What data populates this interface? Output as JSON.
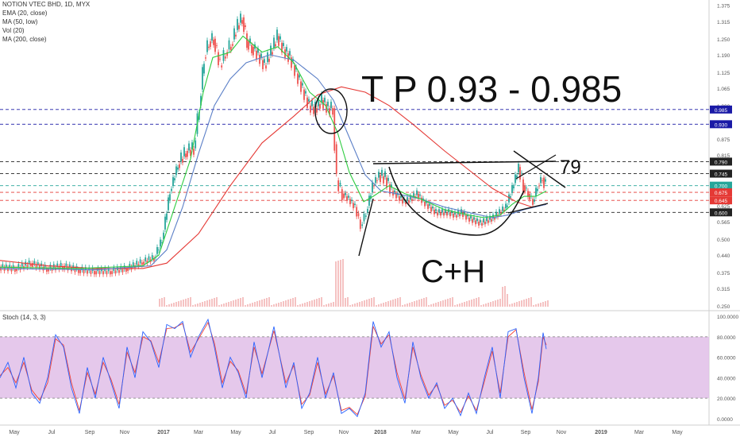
{
  "legend": {
    "title": "NOTION VTEC BHD, 1D, MYX",
    "ema": "EMA (20, close)",
    "ma50": "MA (50, low)",
    "vol": "Vol (20)",
    "ma200": "MA (200, close)"
  },
  "stoch_label": "Stoch (14, 3, 3)",
  "annotations": {
    "tp": "T P  0.93 - 0.985",
    "cup_handle": "C+H",
    "level_note": "79"
  },
  "colors": {
    "candle_up": "#26a69a",
    "candle_down": "#ef5350",
    "ema": "#2ecc40",
    "ma50": "#5b7fc7",
    "ma200": "#e53935",
    "stoch_k": "#2962ff",
    "stoch_d": "#f44336",
    "stoch_band": "#e1bee7",
    "level_blue": "#1a1aa6",
    "level_black": "#222222",
    "level_red": "#e53935",
    "level_teal": "#26a69a"
  },
  "chart_data": [
    {
      "type": "candlestick",
      "title": "NOTION VTEC BHD, 1D, MYX",
      "x_ticks": [
        "May",
        "Jul",
        "Sep",
        "Nov",
        "2017",
        "Mar",
        "May",
        "Jul",
        "Sep",
        "Nov",
        "2018",
        "Mar",
        "May",
        "Jul",
        "Sep",
        "Nov",
        "2019",
        "Mar",
        "May"
      ],
      "y_ticks": [
        0.25,
        0.315,
        0.375,
        0.44,
        0.5,
        0.565,
        0.625,
        0.69,
        0.75,
        0.815,
        0.875,
        0.94,
        1.0,
        1.065,
        1.125,
        1.19,
        1.25,
        1.315,
        1.375
      ],
      "y_tick_labels": [
        "0.250",
        "0.315",
        "0.375",
        "0.440",
        "0.500",
        "0.565",
        "0.625",
        "0.690",
        "0.750",
        "0.815",
        "0.875",
        "0.940",
        "1.000",
        "1.065",
        "1.125",
        "1.190",
        "1.250",
        "1.315",
        "1.375"
      ],
      "ylim": [
        0.235,
        1.395
      ],
      "price_levels": [
        {
          "value": 0.985,
          "label": "0.985",
          "color": "#1a1aa6"
        },
        {
          "value": 0.93,
          "label": "0.930",
          "color": "#1a1aa6"
        },
        {
          "value": 0.79,
          "label": "0.790",
          "color": "#222222"
        },
        {
          "value": 0.745,
          "label": "0.745",
          "color": "#222222"
        },
        {
          "value": 0.7,
          "label": "0.700",
          "color": "#26a69a"
        },
        {
          "value": 0.675,
          "label": "0.675",
          "color": "#e53935"
        },
        {
          "value": 0.645,
          "label": "0.645",
          "color": "#e53935"
        },
        {
          "value": 0.6,
          "label": "0.600",
          "color": "#222222"
        }
      ],
      "close_series": [
        [
          0,
          0.395
        ],
        [
          20,
          0.39
        ],
        [
          40,
          0.41
        ],
        [
          60,
          0.39
        ],
        [
          80,
          0.4
        ],
        [
          100,
          0.385
        ],
        [
          120,
          0.38
        ],
        [
          140,
          0.38
        ],
        [
          160,
          0.39
        ],
        [
          180,
          0.415
        ],
        [
          195,
          0.43
        ],
        [
          205,
          0.5
        ],
        [
          215,
          0.68
        ],
        [
          225,
          0.78
        ],
        [
          235,
          0.83
        ],
        [
          245,
          0.84
        ],
        [
          252,
          1.0
        ],
        [
          258,
          1.18
        ],
        [
          264,
          1.24
        ],
        [
          270,
          1.25
        ],
        [
          278,
          1.15
        ],
        [
          285,
          1.2
        ],
        [
          292,
          1.23
        ],
        [
          300,
          1.3
        ],
        [
          306,
          1.33
        ],
        [
          312,
          1.24
        ],
        [
          318,
          1.22
        ],
        [
          326,
          1.19
        ],
        [
          334,
          1.15
        ],
        [
          342,
          1.2
        ],
        [
          350,
          1.26
        ],
        [
          358,
          1.21
        ],
        [
          366,
          1.18
        ],
        [
          374,
          1.12
        ],
        [
          382,
          1.06
        ],
        [
          390,
          1.0
        ],
        [
          398,
          0.99
        ],
        [
          406,
          1.02
        ],
        [
          414,
          0.99
        ],
        [
          420,
          0.99
        ],
        [
          425,
          0.72
        ],
        [
          432,
          0.67
        ],
        [
          440,
          0.65
        ],
        [
          448,
          0.62
        ],
        [
          455,
          0.55
        ],
        [
          462,
          0.6
        ],
        [
          470,
          0.7
        ],
        [
          478,
          0.74
        ],
        [
          486,
          0.73
        ],
        [
          494,
          0.68
        ],
        [
          502,
          0.66
        ],
        [
          510,
          0.64
        ],
        [
          518,
          0.65
        ],
        [
          526,
          0.67
        ],
        [
          534,
          0.64
        ],
        [
          542,
          0.62
        ],
        [
          550,
          0.6
        ],
        [
          558,
          0.6
        ],
        [
          566,
          0.6
        ],
        [
          574,
          0.59
        ],
        [
          582,
          0.6
        ],
        [
          590,
          0.58
        ],
        [
          598,
          0.57
        ],
        [
          606,
          0.56
        ],
        [
          614,
          0.57
        ],
        [
          622,
          0.58
        ],
        [
          630,
          0.6
        ],
        [
          638,
          0.62
        ],
        [
          646,
          0.69
        ],
        [
          654,
          0.77
        ],
        [
          660,
          0.7
        ],
        [
          666,
          0.67
        ],
        [
          672,
          0.64
        ],
        [
          678,
          0.7
        ],
        [
          684,
          0.73
        ],
        [
          688,
          0.7
        ]
      ],
      "ema20_series": [
        [
          0,
          0.395
        ],
        [
          100,
          0.39
        ],
        [
          180,
          0.4
        ],
        [
          200,
          0.44
        ],
        [
          220,
          0.62
        ],
        [
          240,
          0.8
        ],
        [
          256,
          1.05
        ],
        [
          268,
          1.18
        ],
        [
          290,
          1.2
        ],
        [
          306,
          1.26
        ],
        [
          330,
          1.2
        ],
        [
          350,
          1.22
        ],
        [
          370,
          1.16
        ],
        [
          390,
          1.05
        ],
        [
          410,
          1.0
        ],
        [
          425,
          0.9
        ],
        [
          440,
          0.75
        ],
        [
          458,
          0.64
        ],
        [
          470,
          0.66
        ],
        [
          490,
          0.7
        ],
        [
          510,
          0.67
        ],
        [
          530,
          0.65
        ],
        [
          560,
          0.61
        ],
        [
          590,
          0.59
        ],
        [
          610,
          0.58
        ],
        [
          630,
          0.59
        ],
        [
          645,
          0.63
        ],
        [
          660,
          0.66
        ],
        [
          675,
          0.66
        ],
        [
          688,
          0.68
        ]
      ],
      "ma50_series": [
        [
          0,
          0.39
        ],
        [
          120,
          0.385
        ],
        [
          190,
          0.4
        ],
        [
          210,
          0.46
        ],
        [
          230,
          0.62
        ],
        [
          250,
          0.82
        ],
        [
          270,
          1.0
        ],
        [
          290,
          1.1
        ],
        [
          310,
          1.16
        ],
        [
          340,
          1.19
        ],
        [
          370,
          1.17
        ],
        [
          400,
          1.1
        ],
        [
          420,
          1.02
        ],
        [
          440,
          0.88
        ],
        [
          460,
          0.74
        ],
        [
          480,
          0.68
        ],
        [
          500,
          0.67
        ],
        [
          530,
          0.65
        ],
        [
          560,
          0.62
        ],
        [
          590,
          0.6
        ],
        [
          620,
          0.58
        ],
        [
          640,
          0.59
        ],
        [
          660,
          0.61
        ],
        [
          688,
          0.63
        ]
      ],
      "ma200_series": [
        [
          0,
          0.42
        ],
        [
          60,
          0.4
        ],
        [
          120,
          0.39
        ],
        [
          180,
          0.39
        ],
        [
          210,
          0.41
        ],
        [
          250,
          0.52
        ],
        [
          290,
          0.7
        ],
        [
          330,
          0.86
        ],
        [
          370,
          0.96
        ],
        [
          400,
          1.04
        ],
        [
          430,
          1.07
        ],
        [
          460,
          1.05
        ],
        [
          490,
          1.0
        ],
        [
          520,
          0.93
        ],
        [
          560,
          0.83
        ],
        [
          590,
          0.76
        ],
        [
          620,
          0.69
        ],
        [
          650,
          0.64
        ],
        [
          670,
          0.62
        ],
        [
          688,
          0.63
        ]
      ]
    },
    {
      "type": "line",
      "title": "Stoch (14, 3, 3)",
      "y_ticks": [
        0,
        20,
        40,
        60,
        80,
        100
      ],
      "y_tick_labels": [
        "0.0000",
        "20.0000",
        "40.0000",
        "60.0000",
        "80.0000",
        "100.0000"
      ],
      "ylim": [
        -4,
        104
      ],
      "band": [
        20,
        80
      ],
      "k_series": [
        [
          0,
          40
        ],
        [
          10,
          55
        ],
        [
          20,
          30
        ],
        [
          30,
          60
        ],
        [
          40,
          25
        ],
        [
          50,
          15
        ],
        [
          60,
          40
        ],
        [
          70,
          82
        ],
        [
          80,
          70
        ],
        [
          90,
          30
        ],
        [
          100,
          5
        ],
        [
          110,
          50
        ],
        [
          120,
          20
        ],
        [
          130,
          60
        ],
        [
          140,
          35
        ],
        [
          150,
          10
        ],
        [
          160,
          70
        ],
        [
          170,
          40
        ],
        [
          180,
          85
        ],
        [
          190,
          75
        ],
        [
          200,
          50
        ],
        [
          210,
          92
        ],
        [
          220,
          88
        ],
        [
          230,
          95
        ],
        [
          240,
          60
        ],
        [
          250,
          80
        ],
        [
          262,
          97
        ],
        [
          270,
          70
        ],
        [
          280,
          30
        ],
        [
          290,
          60
        ],
        [
          300,
          45
        ],
        [
          310,
          20
        ],
        [
          320,
          75
        ],
        [
          330,
          40
        ],
        [
          345,
          90
        ],
        [
          360,
          30
        ],
        [
          370,
          55
        ],
        [
          380,
          10
        ],
        [
          390,
          25
        ],
        [
          400,
          60
        ],
        [
          410,
          20
        ],
        [
          420,
          45
        ],
        [
          430,
          5
        ],
        [
          440,
          10
        ],
        [
          450,
          2
        ],
        [
          460,
          25
        ],
        [
          470,
          95
        ],
        [
          480,
          70
        ],
        [
          490,
          85
        ],
        [
          500,
          40
        ],
        [
          510,
          15
        ],
        [
          520,
          75
        ],
        [
          530,
          40
        ],
        [
          540,
          20
        ],
        [
          550,
          35
        ],
        [
          560,
          10
        ],
        [
          570,
          20
        ],
        [
          580,
          3
        ],
        [
          590,
          25
        ],
        [
          600,
          5
        ],
        [
          610,
          40
        ],
        [
          620,
          70
        ],
        [
          630,
          20
        ],
        [
          640,
          85
        ],
        [
          650,
          88
        ],
        [
          660,
          40
        ],
        [
          670,
          5
        ],
        [
          678,
          40
        ],
        [
          684,
          84
        ],
        [
          688,
          68
        ]
      ],
      "d_series": [
        [
          0,
          42
        ],
        [
          10,
          50
        ],
        [
          20,
          35
        ],
        [
          30,
          55
        ],
        [
          40,
          28
        ],
        [
          50,
          18
        ],
        [
          60,
          35
        ],
        [
          70,
          78
        ],
        [
          80,
          72
        ],
        [
          90,
          35
        ],
        [
          100,
          8
        ],
        [
          110,
          45
        ],
        [
          120,
          24
        ],
        [
          130,
          55
        ],
        [
          140,
          38
        ],
        [
          150,
          14
        ],
        [
          160,
          65
        ],
        [
          170,
          45
        ],
        [
          180,
          80
        ],
        [
          190,
          76
        ],
        [
          200,
          55
        ],
        [
          210,
          88
        ],
        [
          220,
          89
        ],
        [
          230,
          93
        ],
        [
          240,
          65
        ],
        [
          250,
          78
        ],
        [
          262,
          94
        ],
        [
          270,
          74
        ],
        [
          280,
          35
        ],
        [
          290,
          56
        ],
        [
          300,
          47
        ],
        [
          310,
          24
        ],
        [
          320,
          70
        ],
        [
          330,
          44
        ],
        [
          345,
          86
        ],
        [
          360,
          35
        ],
        [
          370,
          52
        ],
        [
          380,
          14
        ],
        [
          390,
          23
        ],
        [
          400,
          55
        ],
        [
          410,
          24
        ],
        [
          420,
          42
        ],
        [
          430,
          8
        ],
        [
          440,
          11
        ],
        [
          450,
          4
        ],
        [
          460,
          22
        ],
        [
          470,
          90
        ],
        [
          480,
          73
        ],
        [
          490,
          82
        ],
        [
          500,
          45
        ],
        [
          510,
          19
        ],
        [
          520,
          70
        ],
        [
          530,
          43
        ],
        [
          540,
          23
        ],
        [
          550,
          33
        ],
        [
          560,
          13
        ],
        [
          570,
          18
        ],
        [
          580,
          6
        ],
        [
          590,
          22
        ],
        [
          600,
          8
        ],
        [
          610,
          36
        ],
        [
          620,
          66
        ],
        [
          630,
          25
        ],
        [
          640,
          80
        ],
        [
          650,
          87
        ],
        [
          660,
          45
        ],
        [
          670,
          9
        ],
        [
          678,
          36
        ],
        [
          684,
          80
        ],
        [
          688,
          72
        ]
      ]
    }
  ]
}
